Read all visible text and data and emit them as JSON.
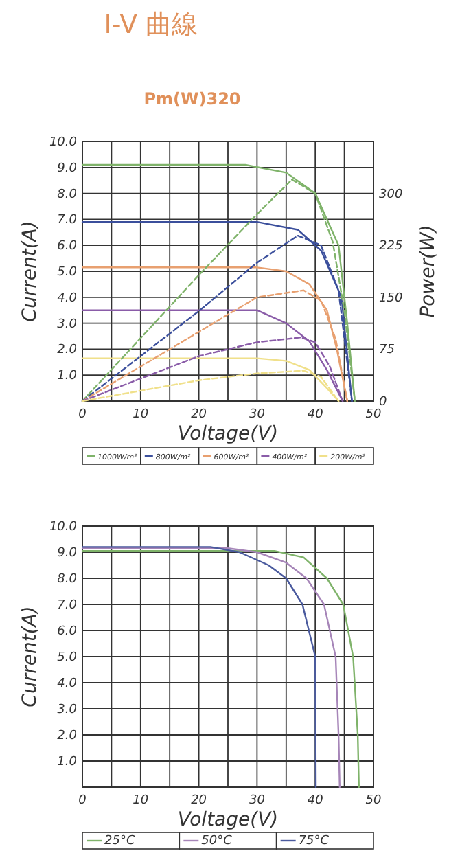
{
  "chart_data": [
    {
      "type": "line",
      "title": "I-V 曲線",
      "subtitle": "Pm(W)320",
      "xlabel": "Voltage(V)",
      "ylabel": "Current(A)",
      "y2label": "Power(W)",
      "xlim": [
        0,
        50
      ],
      "ylim": [
        0,
        10
      ],
      "y2lim": [
        0,
        375
      ],
      "xticks": [
        0,
        {
          "value": 5,
          "label": null
        },
        10,
        {
          "value": 15,
          "label": null
        },
        20,
        {
          "value": 25,
          "label": null
        },
        30,
        {
          "value": 35,
          "label": null
        },
        40,
        {
          "value": 45,
          "label": null
        },
        50
      ],
      "yticks": [
        {
          "value": 0,
          "label": null
        },
        {
          "value": 1,
          "label": "1.0"
        },
        {
          "value": 2,
          "label": "2.0"
        },
        {
          "value": 3,
          "label": "3.0"
        },
        {
          "value": 4,
          "label": "4.0"
        },
        {
          "value": 5,
          "label": "5.0"
        },
        {
          "value": 6,
          "label": "6.0"
        },
        {
          "value": 7,
          "label": "7.0"
        },
        {
          "value": 8,
          "label": "8.0"
        },
        {
          "value": 9,
          "label": "9.0"
        },
        {
          "value": 10,
          "label": "10.0"
        }
      ],
      "y2ticks": [
        0,
        75,
        150,
        225,
        300
      ],
      "grid": true,
      "legend": "bottom",
      "marker": "none",
      "series": [
        {
          "name": "1000W/m²",
          "color": "#7fb36a",
          "line_style": "solid",
          "x": [
            0,
            28,
            35,
            40,
            44,
            45.5,
            46.8
          ],
          "values": [
            9.1,
            9.1,
            8.8,
            8.0,
            6.0,
            3.0,
            0
          ]
        },
        {
          "name": "800W/m²",
          "color": "#3b4f9c",
          "line_style": "solid",
          "x": [
            0,
            30,
            37,
            41,
            44.5,
            46.3
          ],
          "values": [
            6.9,
            6.9,
            6.6,
            5.8,
            4.0,
            0
          ]
        },
        {
          "name": "600W/m²",
          "color": "#e8a070",
          "line_style": "solid",
          "x": [
            0,
            30,
            35,
            39,
            42,
            43.7,
            45.5
          ],
          "values": [
            5.15,
            5.15,
            5.0,
            4.5,
            3.5,
            2.0,
            0
          ]
        },
        {
          "name": "400W/m²",
          "color": "#8a5ca8",
          "line_style": "solid",
          "x": [
            0,
            30,
            35,
            39,
            42,
            44.7
          ],
          "values": [
            3.5,
            3.5,
            3.0,
            2.3,
            1.2,
            0
          ]
        },
        {
          "name": "200W/m²",
          "color": "#f0e08a",
          "line_style": "solid",
          "x": [
            0,
            30,
            35,
            39,
            42,
            44
          ],
          "values": [
            1.65,
            1.65,
            1.55,
            1.2,
            0.5,
            0
          ]
        },
        {
          "color": "#7fb36a",
          "line_style": "dashed",
          "axis": "y2",
          "x": [
            0,
            10,
            20,
            30,
            36,
            40,
            43,
            45,
            46.8
          ],
          "values": [
            0,
            91,
            182,
            270,
            320,
            300,
            230,
            130,
            0
          ]
        },
        {
          "color": "#3b4f9c",
          "line_style": "dashed",
          "axis": "y2",
          "x": [
            0,
            20,
            30,
            37,
            41,
            44,
            46.3
          ],
          "values": [
            0,
            130,
            200,
            239,
            225,
            160,
            0
          ]
        },
        {
          "color": "#e8a070",
          "line_style": "dashed",
          "axis": "y2",
          "x": [
            0,
            20,
            30,
            38,
            41,
            43.5,
            45.5
          ],
          "values": [
            0,
            100,
            150,
            160,
            145,
            90,
            0
          ]
        },
        {
          "color": "#8a5ca8",
          "line_style": "dashed",
          "axis": "y2",
          "x": [
            0,
            20,
            30,
            37.5,
            40,
            42.5,
            44.7
          ],
          "values": [
            0,
            65,
            85,
            92,
            85,
            50,
            0
          ]
        },
        {
          "color": "#f0e08a",
          "line_style": "dashed",
          "axis": "y2",
          "x": [
            0,
            20,
            30,
            38,
            41,
            44
          ],
          "values": [
            0,
            30,
            40,
            44,
            35,
            0
          ]
        }
      ]
    },
    {
      "type": "line",
      "xlabel": "Voltage(V)",
      "ylabel": "Current(A)",
      "xlim": [
        0,
        50
      ],
      "ylim": [
        0,
        10
      ],
      "xticks": [
        0,
        {
          "value": 5,
          "label": null
        },
        10,
        {
          "value": 15,
          "label": null
        },
        20,
        {
          "value": 25,
          "label": null
        },
        30,
        {
          "value": 35,
          "label": null
        },
        40,
        {
          "value": 45,
          "label": null
        },
        50
      ],
      "yticks": [
        {
          "value": 0,
          "label": null
        },
        {
          "value": 1,
          "label": "1.0"
        },
        {
          "value": 2,
          "label": "2.0"
        },
        {
          "value": 3,
          "label": "3.0"
        },
        {
          "value": 4,
          "label": "4.0"
        },
        {
          "value": 5,
          "label": "5.0"
        },
        {
          "value": 6,
          "label": "6.0"
        },
        {
          "value": 7,
          "label": "7.0"
        },
        {
          "value": 8,
          "label": "8.0"
        },
        {
          "value": 9,
          "label": "9.0"
        },
        {
          "value": 10,
          "label": "10.0"
        }
      ],
      "grid": true,
      "legend": "bottom",
      "marker": "none",
      "series": [
        {
          "name": "25°C",
          "color": "#7fb36a",
          "x": [
            0,
            33,
            38,
            42,
            44.8,
            46.5,
            47.3,
            47.5
          ],
          "values": [
            9.05,
            9.05,
            8.8,
            8.0,
            7.0,
            5.0,
            2.0,
            0
          ]
        },
        {
          "name": "50°C",
          "color": "#a685b8",
          "x": [
            0,
            25,
            30,
            35,
            38.5,
            41.5,
            43.5,
            44,
            44.2
          ],
          "values": [
            9.15,
            9.15,
            9.0,
            8.6,
            8.0,
            7.0,
            5.0,
            2.0,
            0
          ]
        },
        {
          "name": "75°C",
          "color": "#4a5a9e",
          "x": [
            0,
            22,
            27,
            32,
            35,
            37.8,
            40,
            40.1
          ],
          "values": [
            9.2,
            9.2,
            9.0,
            8.5,
            8.0,
            7.0,
            5.0,
            0
          ]
        }
      ]
    }
  ]
}
